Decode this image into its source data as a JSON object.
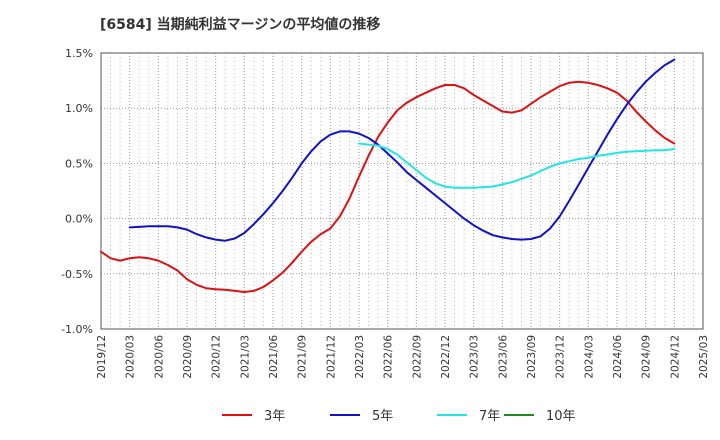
{
  "title": "[6584]  当期純利益マージンの平均値の推移",
  "chart_data": {
    "type": "line",
    "title": "[6584]  当期純利益マージンの平均値の推移",
    "xlabel": "",
    "ylabel": "",
    "x_ticks": [
      "2019/12",
      "2020/03",
      "2020/06",
      "2020/09",
      "2020/12",
      "2021/03",
      "2021/06",
      "2021/09",
      "2021/12",
      "2022/03",
      "2022/06",
      "2022/09",
      "2022/12",
      "2023/03",
      "2023/06",
      "2023/09",
      "2023/12",
      "2024/03",
      "2024/06",
      "2024/09",
      "2024/12",
      "2025/03"
    ],
    "y_ticks": [
      "1.5%",
      "1.0%",
      "0.5%",
      "0.0%",
      "-0.5%",
      "-1.0%"
    ],
    "ylim": [
      -1.0,
      1.5
    ],
    "y_unit": "%",
    "grid": true,
    "legend_position": "bottom",
    "series": [
      {
        "name": "3年",
        "color": "#dd1111",
        "x": [
          "2019/12",
          "2020/01",
          "2020/02",
          "2020/03",
          "2020/04",
          "2020/05",
          "2020/06",
          "2020/07",
          "2020/08",
          "2020/09",
          "2020/10",
          "2020/11",
          "2020/12",
          "2021/01",
          "2021/02",
          "2021/03",
          "2021/04",
          "2021/05",
          "2021/06",
          "2021/07",
          "2021/08",
          "2021/09",
          "2021/10",
          "2021/11",
          "2021/12",
          "2022/01",
          "2022/02",
          "2022/03",
          "2022/04",
          "2022/05",
          "2022/06",
          "2022/07",
          "2022/08",
          "2022/09",
          "2022/10",
          "2022/11",
          "2022/12",
          "2023/01",
          "2023/02",
          "2023/03",
          "2023/04",
          "2023/05",
          "2023/06",
          "2023/07",
          "2023/08",
          "2023/09",
          "2023/10",
          "2023/11",
          "2023/12",
          "2024/01",
          "2024/02",
          "2024/03",
          "2024/04",
          "2024/05",
          "2024/06",
          "2024/07",
          "2024/08",
          "2024/09",
          "2024/10",
          "2024/11",
          "2024/12"
        ],
        "values": [
          -0.3,
          -0.36,
          -0.38,
          -0.36,
          -0.35,
          -0.36,
          -0.38,
          -0.42,
          -0.47,
          -0.55,
          -0.6,
          -0.63,
          -0.64,
          -0.645,
          -0.655,
          -0.665,
          -0.655,
          -0.62,
          -0.56,
          -0.49,
          -0.4,
          -0.3,
          -0.21,
          -0.14,
          -0.09,
          0.02,
          0.18,
          0.38,
          0.57,
          0.74,
          0.87,
          0.98,
          1.05,
          1.1,
          1.14,
          1.18,
          1.21,
          1.21,
          1.18,
          1.12,
          1.07,
          1.02,
          0.97,
          0.96,
          0.98,
          1.04,
          1.1,
          1.15,
          1.2,
          1.23,
          1.24,
          1.23,
          1.21,
          1.18,
          1.14,
          1.07,
          0.97,
          0.88,
          0.8,
          0.73,
          0.68
        ]
      },
      {
        "name": "5年",
        "color": "#1111cc",
        "x": [
          "2020/03",
          "2020/04",
          "2020/05",
          "2020/06",
          "2020/07",
          "2020/08",
          "2020/09",
          "2020/10",
          "2020/11",
          "2020/12",
          "2021/01",
          "2021/02",
          "2021/03",
          "2021/04",
          "2021/05",
          "2021/06",
          "2021/07",
          "2021/08",
          "2021/09",
          "2021/10",
          "2021/11",
          "2021/12",
          "2022/01",
          "2022/02",
          "2022/03",
          "2022/04",
          "2022/05",
          "2022/06",
          "2022/07",
          "2022/08",
          "2022/09",
          "2022/10",
          "2022/11",
          "2022/12",
          "2023/01",
          "2023/02",
          "2023/03",
          "2023/04",
          "2023/05",
          "2023/06",
          "2023/07",
          "2023/08",
          "2023/09",
          "2023/10",
          "2023/11",
          "2023/12",
          "2024/01",
          "2024/02",
          "2024/03",
          "2024/04",
          "2024/05",
          "2024/06",
          "2024/07",
          "2024/08",
          "2024/09",
          "2024/10",
          "2024/11",
          "2024/12"
        ],
        "values": [
          -0.08,
          -0.075,
          -0.07,
          -0.07,
          -0.07,
          -0.08,
          -0.1,
          -0.14,
          -0.17,
          -0.19,
          -0.2,
          -0.18,
          -0.13,
          -0.05,
          0.04,
          0.14,
          0.25,
          0.37,
          0.5,
          0.61,
          0.7,
          0.76,
          0.79,
          0.79,
          0.77,
          0.73,
          0.67,
          0.59,
          0.51,
          0.42,
          0.35,
          0.28,
          0.21,
          0.14,
          0.07,
          -0.0,
          -0.06,
          -0.11,
          -0.15,
          -0.17,
          -0.185,
          -0.19,
          -0.185,
          -0.16,
          -0.09,
          0.02,
          0.16,
          0.31,
          0.46,
          0.61,
          0.76,
          0.9,
          1.03,
          1.14,
          1.24,
          1.32,
          1.39,
          1.44
        ]
      },
      {
        "name": "7年",
        "color": "#22e6e6",
        "x": [
          "2022/03",
          "2022/04",
          "2022/05",
          "2022/06",
          "2022/07",
          "2022/08",
          "2022/09",
          "2022/10",
          "2022/11",
          "2022/12",
          "2023/01",
          "2023/02",
          "2023/03",
          "2023/04",
          "2023/05",
          "2023/06",
          "2023/07",
          "2023/08",
          "2023/09",
          "2023/10",
          "2023/11",
          "2023/12",
          "2024/01",
          "2024/02",
          "2024/03",
          "2024/04",
          "2024/05",
          "2024/06",
          "2024/07",
          "2024/08",
          "2024/09",
          "2024/10",
          "2024/11",
          "2024/12"
        ],
        "values": [
          0.68,
          0.67,
          0.66,
          0.63,
          0.58,
          0.51,
          0.44,
          0.37,
          0.32,
          0.29,
          0.28,
          0.28,
          0.28,
          0.285,
          0.29,
          0.31,
          0.33,
          0.36,
          0.39,
          0.43,
          0.47,
          0.5,
          0.52,
          0.54,
          0.55,
          0.57,
          0.58,
          0.595,
          0.605,
          0.61,
          0.615,
          0.62,
          0.62,
          0.63
        ]
      },
      {
        "name": "10年",
        "color": "#228822",
        "x": [],
        "values": []
      }
    ]
  }
}
